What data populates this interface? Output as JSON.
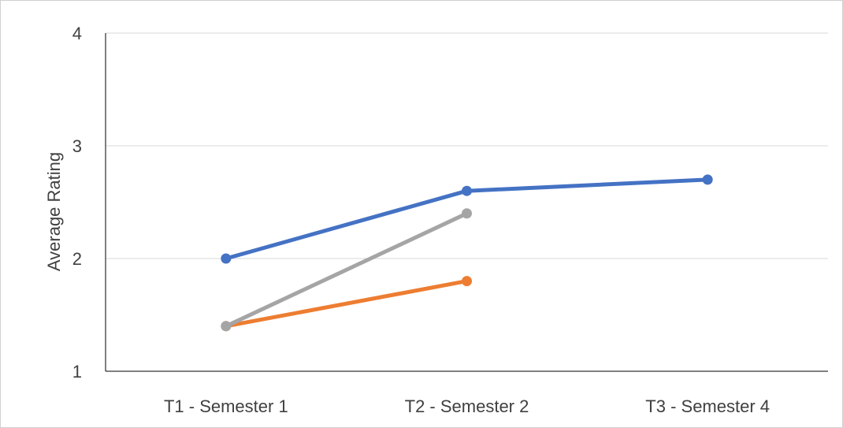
{
  "chart_data": {
    "type": "line",
    "title": "",
    "xlabel": "",
    "ylabel": "Average Rating",
    "categories": [
      "T1 - Semester 1",
      "T2 - Semester 2",
      "T3 - Semester 4"
    ],
    "ylim": [
      1,
      4
    ],
    "yticks": [
      1,
      2,
      3,
      4
    ],
    "grid": true,
    "legend": "none",
    "series": [
      {
        "color": "#4472C4",
        "values": [
          2.0,
          2.6,
          2.7
        ]
      },
      {
        "color": "#ED7D31",
        "values": [
          1.4,
          1.8,
          null
        ]
      },
      {
        "color": "#A5A5A5",
        "values": [
          1.4,
          2.4,
          null
        ]
      }
    ]
  }
}
